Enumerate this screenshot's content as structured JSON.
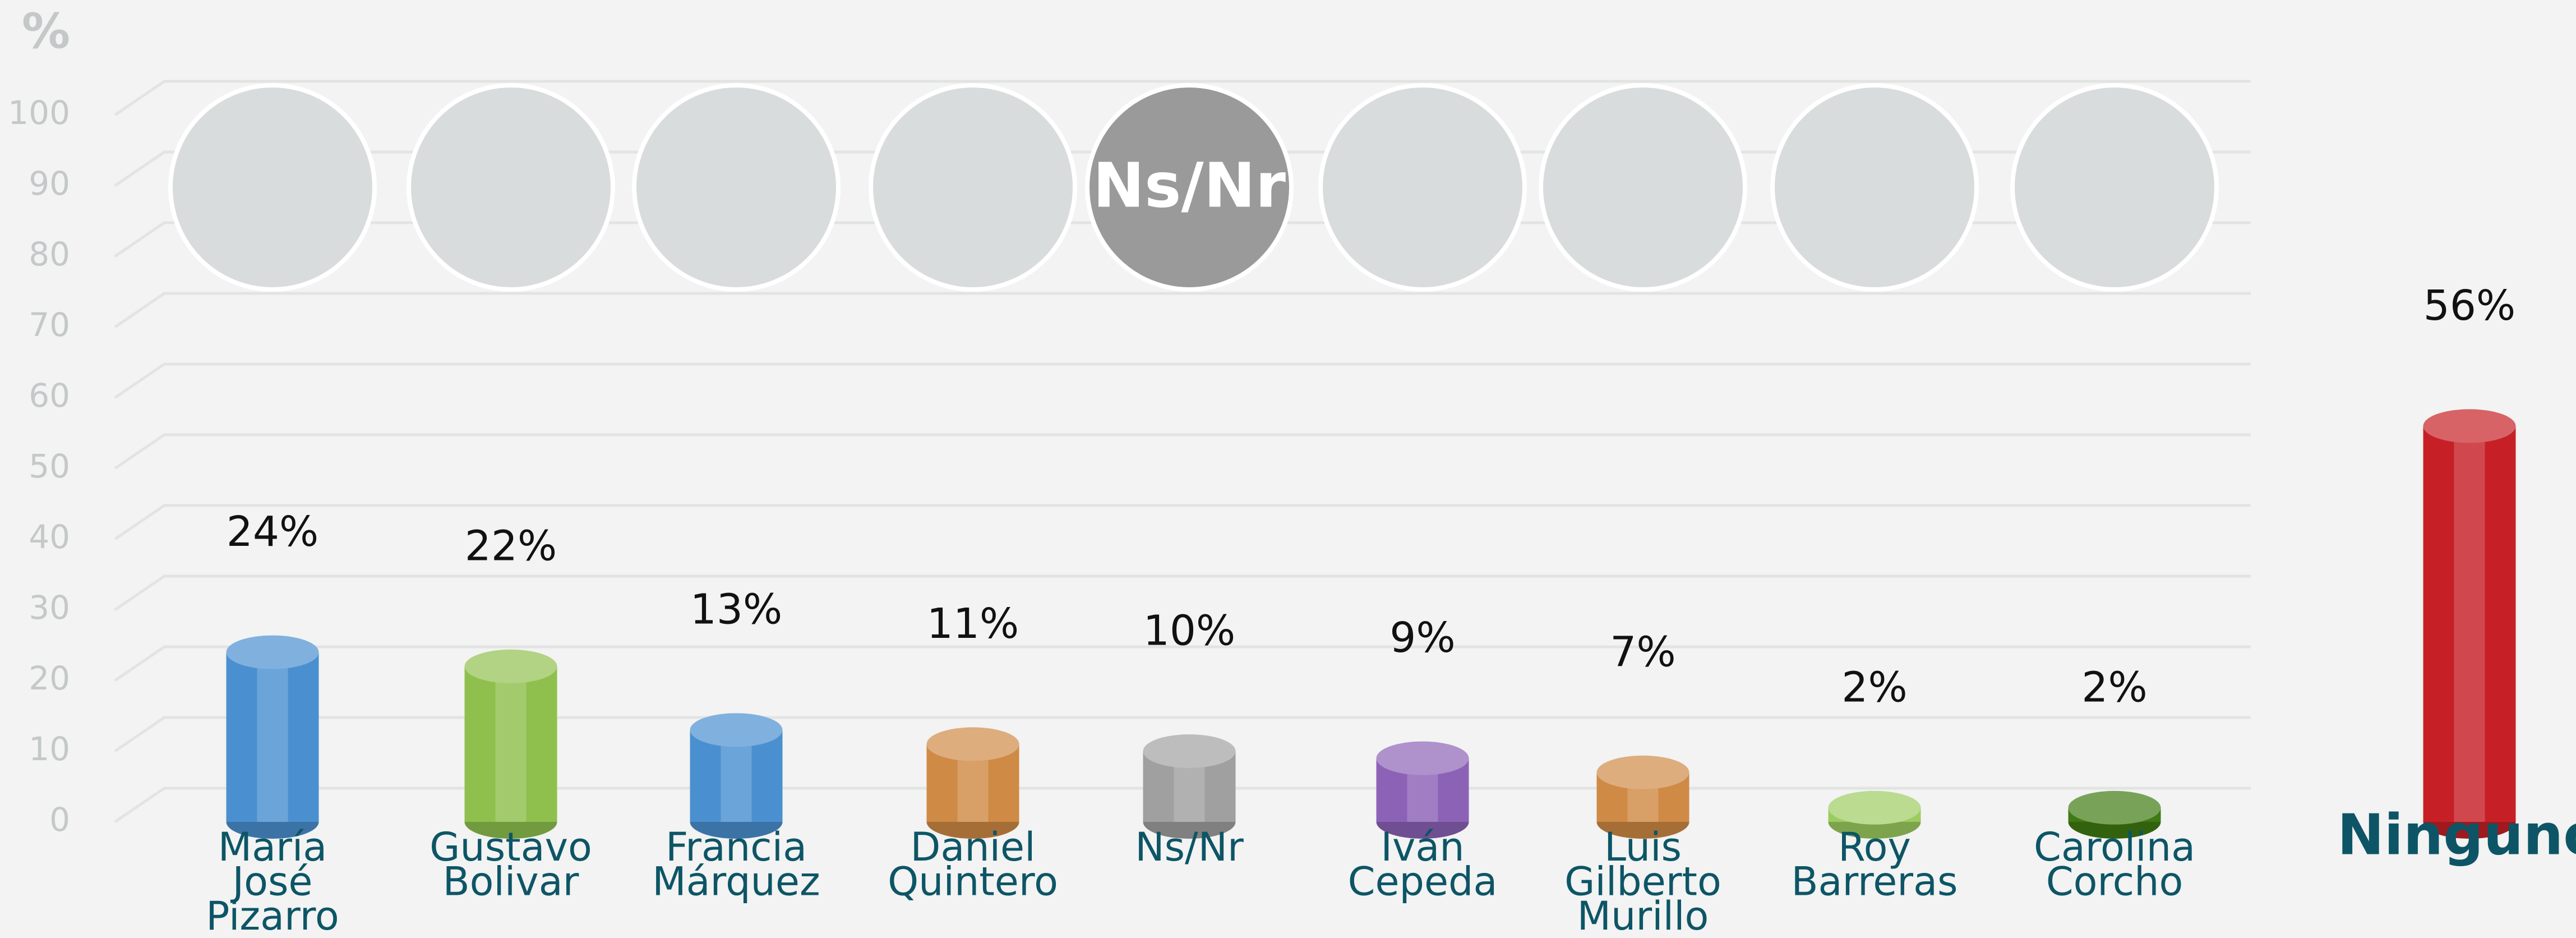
{
  "chart_data": {
    "type": "bar",
    "y_axis_label": "%",
    "categories": [
      "María\nJosé\nPizarro",
      "Gustavo\nBolivar",
      "Francia\nMárquez",
      "Daniel\nQuintero",
      "Ns/Nr",
      "Iván\nCepeda",
      "Luis\nGilberto\nMurillo",
      "Roy\nBarreras",
      "Carolina\nCorcho",
      "Ninguno"
    ],
    "values": [
      24,
      22,
      13,
      11,
      10,
      9,
      7,
      2,
      2,
      56
    ],
    "value_labels": [
      "24%",
      "22%",
      "13%",
      "11%",
      "10%",
      "9%",
      "7%",
      "2%",
      "2%",
      "56%"
    ],
    "colors": [
      "#4a90d0",
      "#8fc04e",
      "#4a90d0",
      "#cf8a45",
      "#a0a0a0",
      "#8c62b6",
      "#cf8a45",
      "#9ccc60",
      "#3f7a12",
      "#c62026"
    ],
    "photo_badge": "Ns/Nr",
    "ylim": [
      0,
      100
    ],
    "yticks": [
      0,
      10,
      20,
      30,
      40,
      50,
      60,
      70,
      80,
      90,
      100
    ],
    "grid": true
  }
}
